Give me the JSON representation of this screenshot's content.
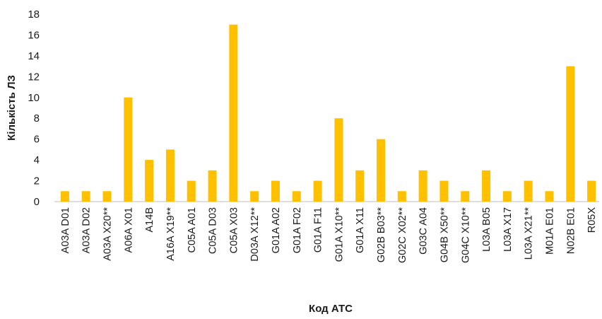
{
  "chart_data": {
    "type": "bar",
    "title": "",
    "xlabel": "Код АТС",
    "ylabel": "Кількість ЛЗ",
    "ylim": [
      0,
      18
    ],
    "yticks": [
      0,
      2,
      4,
      6,
      8,
      10,
      12,
      14,
      16,
      18
    ],
    "grid": false,
    "legend": "none",
    "bar_color": "#FFC000",
    "categories": [
      "A03A D01",
      "A03A D02",
      "A03A X20**",
      "A06A X01",
      "A14B",
      "A16A X19**",
      "C05A A01",
      "C05A D03",
      "C05A X03",
      "D03A X12**",
      "G01A A02",
      "G01A F02",
      "G01A F11",
      "G01A X10**",
      "G01A X11",
      "G02B B03**",
      "G02C X02**",
      "G03C A04",
      "G04B X50**",
      "G04C X10**",
      "L03A B05",
      "L03A X17",
      "L03A X21**",
      "M01A E01",
      "N02B E01",
      "R05X"
    ],
    "values": [
      1,
      1,
      1,
      10,
      4,
      5,
      2,
      3,
      17,
      1,
      2,
      1,
      2,
      8,
      3,
      6,
      1,
      3,
      2,
      1,
      3,
      1,
      2,
      1,
      13,
      2
    ]
  }
}
